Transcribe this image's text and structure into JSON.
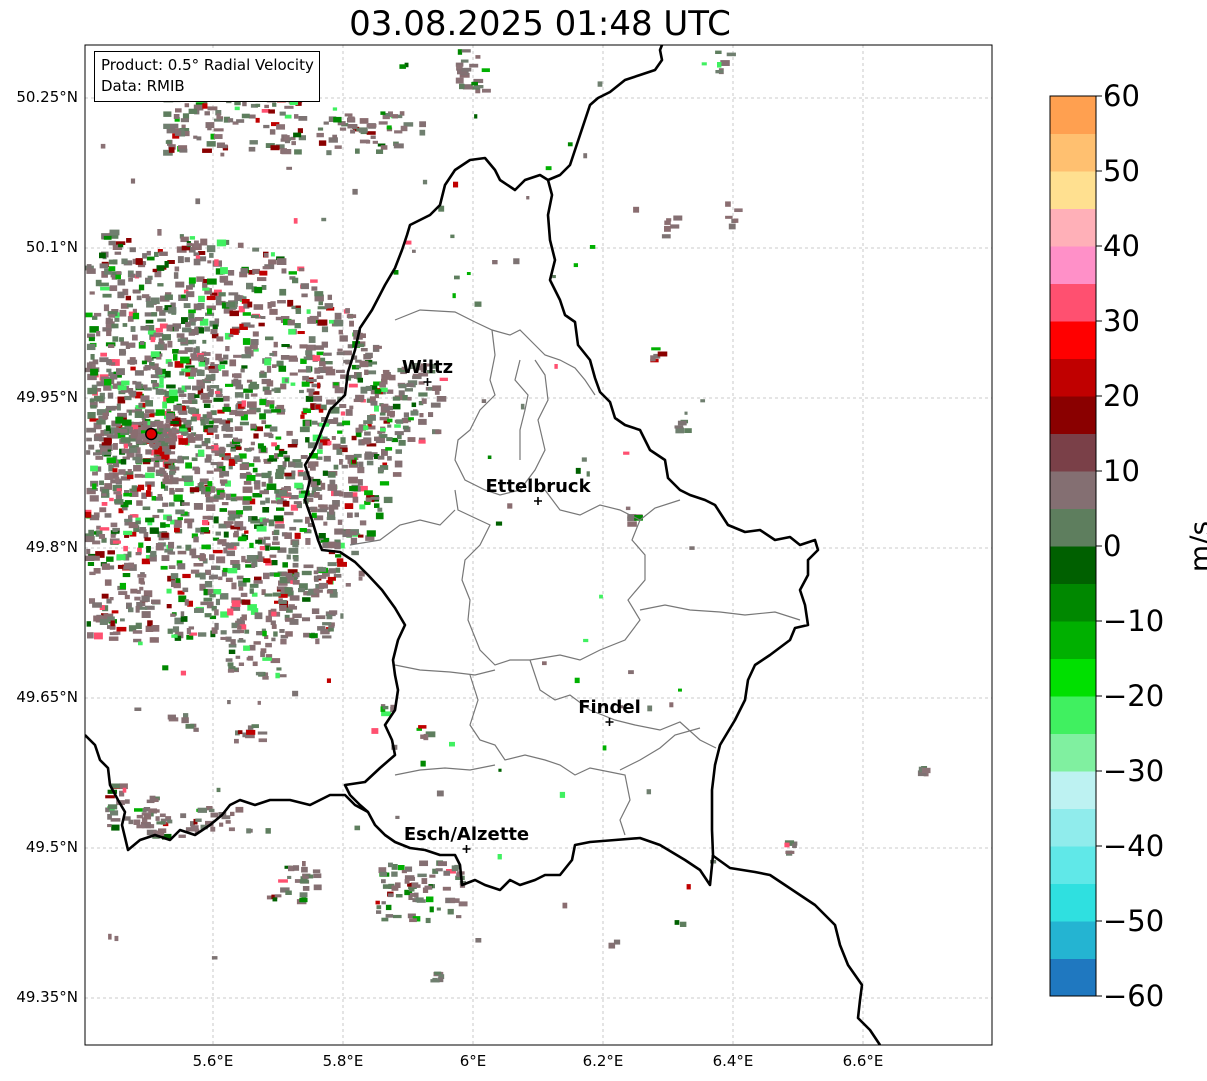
{
  "title": "03.08.2025 01:48 UTC",
  "info": {
    "product": "Product: 0.5° Radial Velocity",
    "source": "Data: RMIB"
  },
  "axes": {
    "lat_ticks": [
      "50.25°N",
      "50.1°N",
      "49.95°N",
      "49.8°N",
      "49.65°N",
      "49.5°N",
      "49.35°N"
    ],
    "lon_ticks": [
      "5.6°E",
      "5.8°E",
      "6°E",
      "6.2°E",
      "6.4°E",
      "6.6°E"
    ]
  },
  "cities": [
    {
      "name": "Wiltz",
      "lon": 5.93,
      "lat": 49.966
    },
    {
      "name": "Ettelbruck",
      "lon": 6.1,
      "lat": 49.847
    },
    {
      "name": "Findel",
      "lon": 6.21,
      "lat": 49.626
    },
    {
      "name": "Esch/Alzette",
      "lon": 5.99,
      "lat": 49.499
    }
  ],
  "radar": {
    "lon": 5.505,
    "lat": 49.914,
    "color": "#e00000"
  },
  "colorbar": {
    "label": "m/s",
    "min": -60,
    "max": 60,
    "ticks": [
      "60",
      "50",
      "40",
      "30",
      "20",
      "10",
      "0",
      "−10",
      "−20",
      "−30",
      "−40",
      "−50",
      "−60"
    ],
    "colors": [
      "#1f78c0",
      "#24b4d2",
      "#2fe0e0",
      "#60e8e8",
      "#90ecec",
      "#bdf2f2",
      "#80f0a0",
      "#40f060",
      "#00e000",
      "#00b000",
      "#008800",
      "#006000",
      "#5e7e5e",
      "#846f72",
      "#7a4048",
      "#8a0000",
      "#c00000",
      "#ff0000",
      "#ff5070",
      "#ff90c8",
      "#ffb0b8",
      "#ffe090",
      "#ffc070",
      "#ffa050"
    ]
  }
}
